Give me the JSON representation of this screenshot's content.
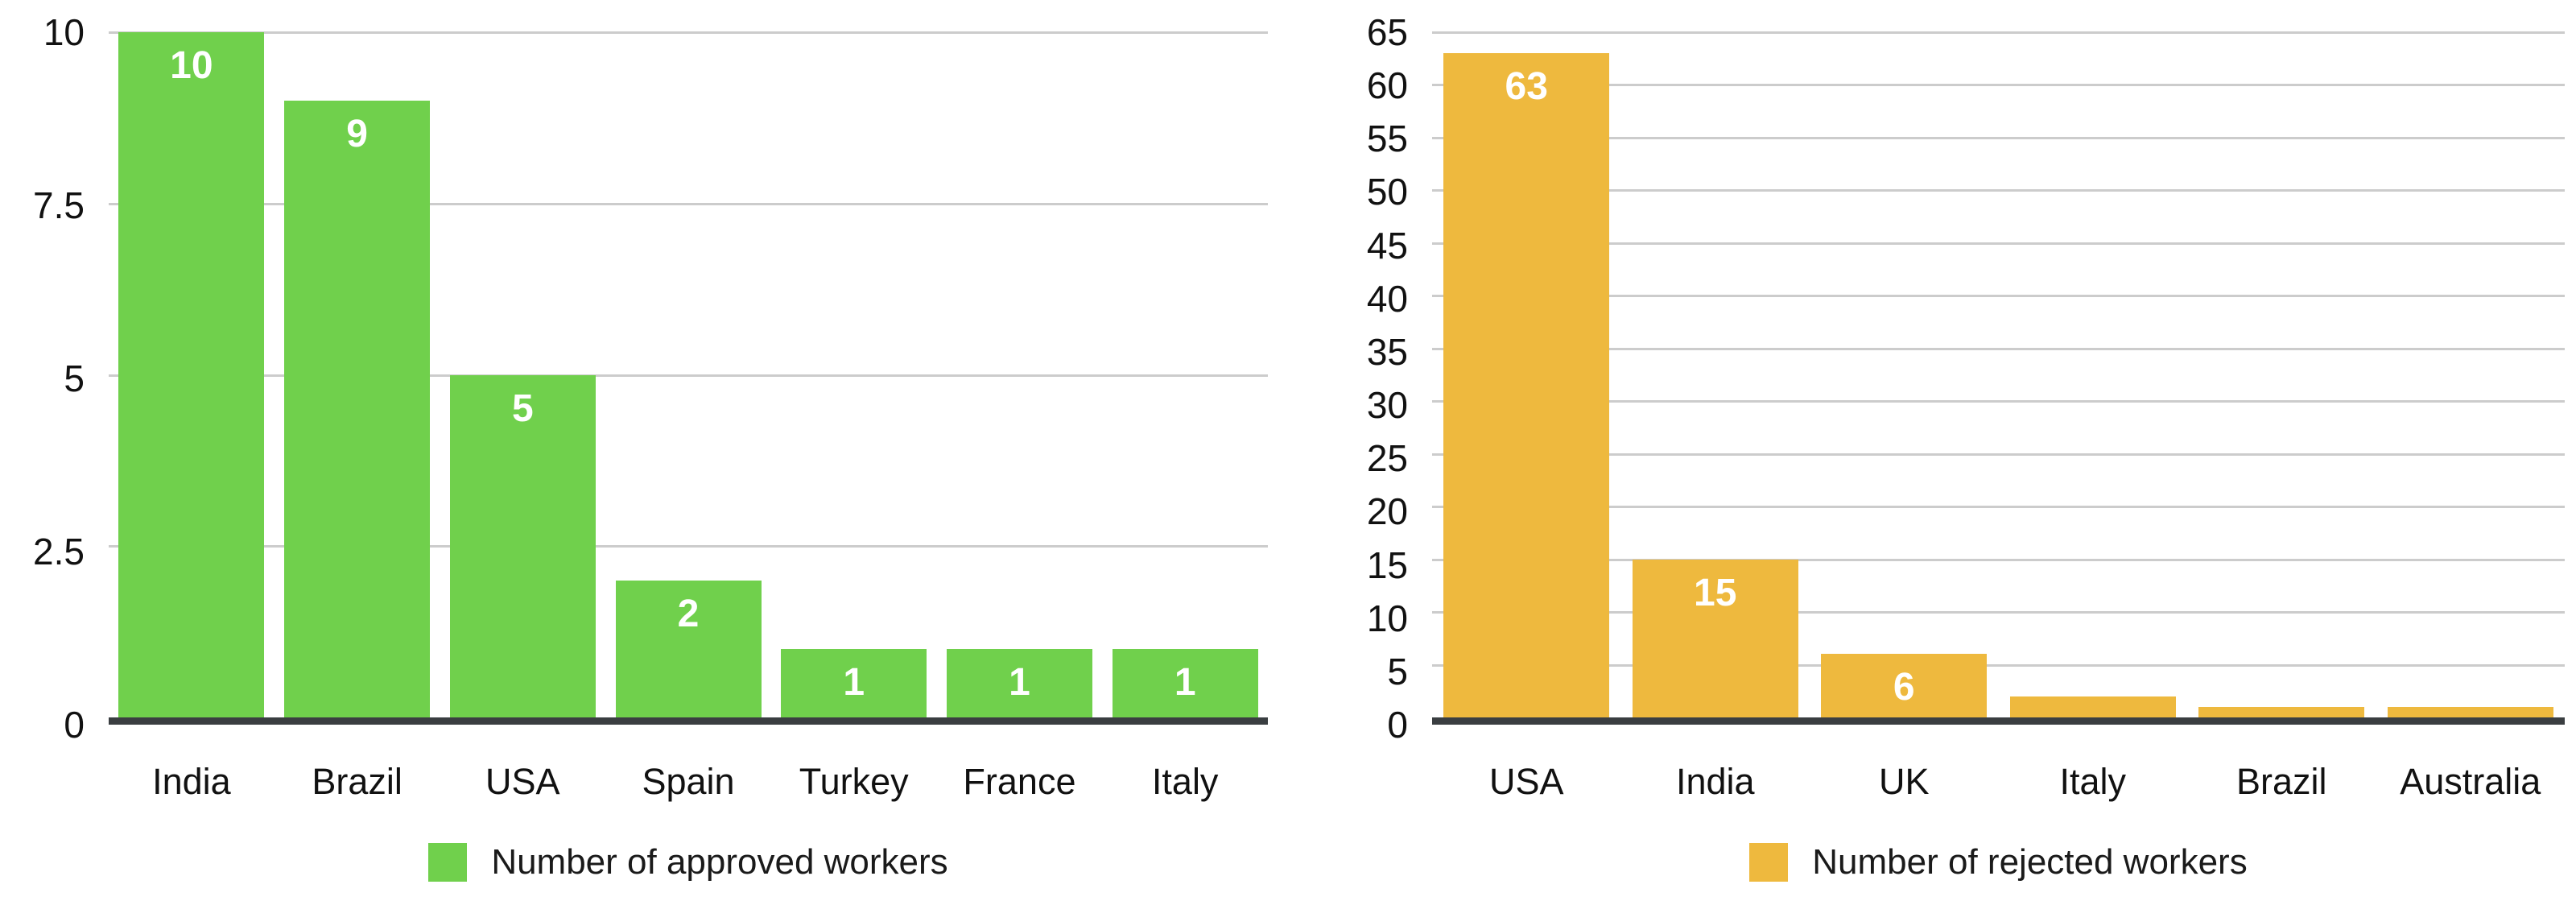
{
  "page": {
    "background": "#ffffff"
  },
  "colors": {
    "approved_green": "#70D04C",
    "rejected_yellow": "#EEB93E",
    "axis_line": "#3a3e41",
    "gridline": "#cccccc",
    "tick_text": "#111111",
    "bar_value_text": "#ffffff"
  },
  "chart_data": [
    {
      "type": "bar",
      "title": "",
      "categories": [
        "India",
        "Brazil",
        "USA",
        "Spain",
        "Turkey",
        "France",
        "Italy"
      ],
      "values": [
        10,
        9,
        5,
        2,
        1,
        1,
        1
      ],
      "bar_labels": [
        "10",
        "9",
        "5",
        "2",
        "1",
        "1",
        "1"
      ],
      "legend": "Number of approved workers",
      "legend_position": "bottom",
      "bar_color": "#70D04C",
      "xlabel": "",
      "ylabel": "",
      "ylim": [
        0,
        10
      ],
      "yticks": [
        0,
        2.5,
        5,
        7.5,
        10
      ],
      "ytick_labels": [
        "0",
        "2.5",
        "5",
        "7.5",
        "10"
      ],
      "grid": true
    },
    {
      "type": "bar",
      "title": "",
      "categories": [
        "USA",
        "India",
        "UK",
        "Italy",
        "Brazil",
        "Australia"
      ],
      "values": [
        63,
        15,
        6,
        2,
        1,
        1
      ],
      "bar_labels": [
        "63",
        "15",
        "6",
        "",
        "",
        ""
      ],
      "legend": "Number of rejected workers",
      "legend_position": "bottom",
      "bar_color": "#EEB93E",
      "xlabel": "",
      "ylabel": "",
      "ylim": [
        0,
        65
      ],
      "yticks": [
        0,
        5,
        10,
        15,
        20,
        25,
        30,
        35,
        40,
        45,
        50,
        55,
        60,
        65
      ],
      "ytick_labels": [
        "0",
        "5",
        "10",
        "15",
        "20",
        "25",
        "30",
        "35",
        "40",
        "45",
        "50",
        "55",
        "60",
        "65"
      ],
      "grid": true
    }
  ]
}
